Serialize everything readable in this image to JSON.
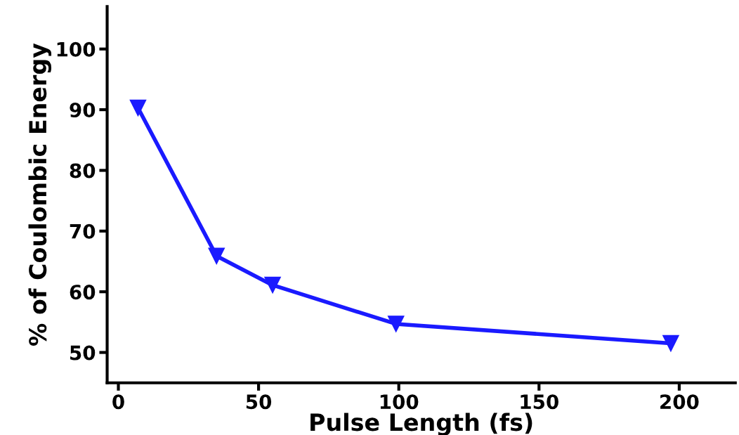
{
  "chart_data": {
    "type": "line",
    "xlabel": "Pulse Length (fs)",
    "ylabel": "% of Coulombic Energy",
    "x": [
      7,
      35,
      55,
      99,
      197
    ],
    "series": [
      {
        "color": "#1a1aff",
        "values": [
          90.3,
          65.9,
          61.1,
          54.7,
          51.5
        ]
      }
    ],
    "xlim": [
      -4,
      220
    ],
    "ylim": [
      45,
      107
    ],
    "xticks": [
      0,
      50,
      100,
      150,
      200
    ],
    "yticks": [
      50,
      60,
      70,
      80,
      90,
      100
    ],
    "grid": false,
    "marker": "triangle",
    "line_style": "solid"
  }
}
